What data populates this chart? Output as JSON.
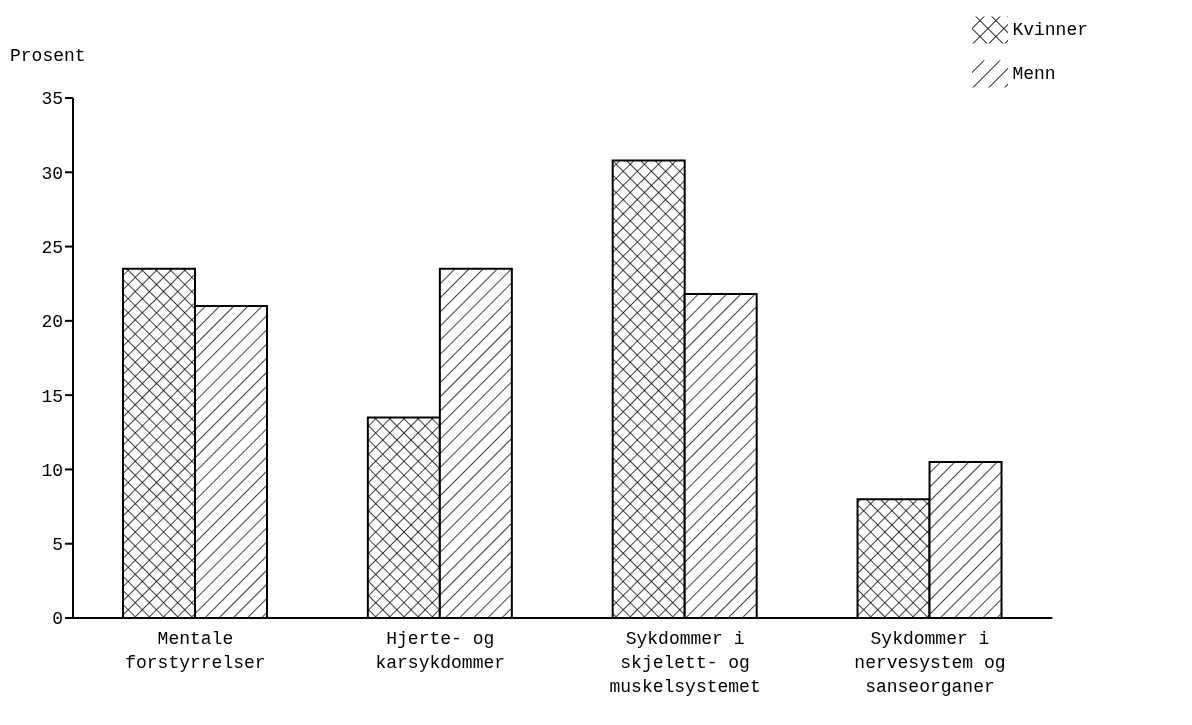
{
  "chart_data": {
    "type": "bar",
    "ylabel": "Prosent",
    "categories": [
      "Mentale forstyrrelser",
      "Hjerte- og karsykdommer",
      "Sykdommer i skjelett- og muskelsystemet",
      "Sykdommer i nervesystem og sanseorganer"
    ],
    "series": [
      {
        "name": "Kvinner",
        "color": "#000000",
        "values": [
          23.5,
          13.5,
          30.8,
          8
        ]
      },
      {
        "name": "Menn",
        "color": "#000000",
        "values": [
          21,
          23.5,
          21.8,
          10.5
        ]
      }
    ],
    "ylim": [
      0,
      35
    ],
    "yticks": [
      0,
      5,
      10,
      15,
      20,
      25,
      30,
      35
    ],
    "grid": false,
    "legend": "top right"
  }
}
